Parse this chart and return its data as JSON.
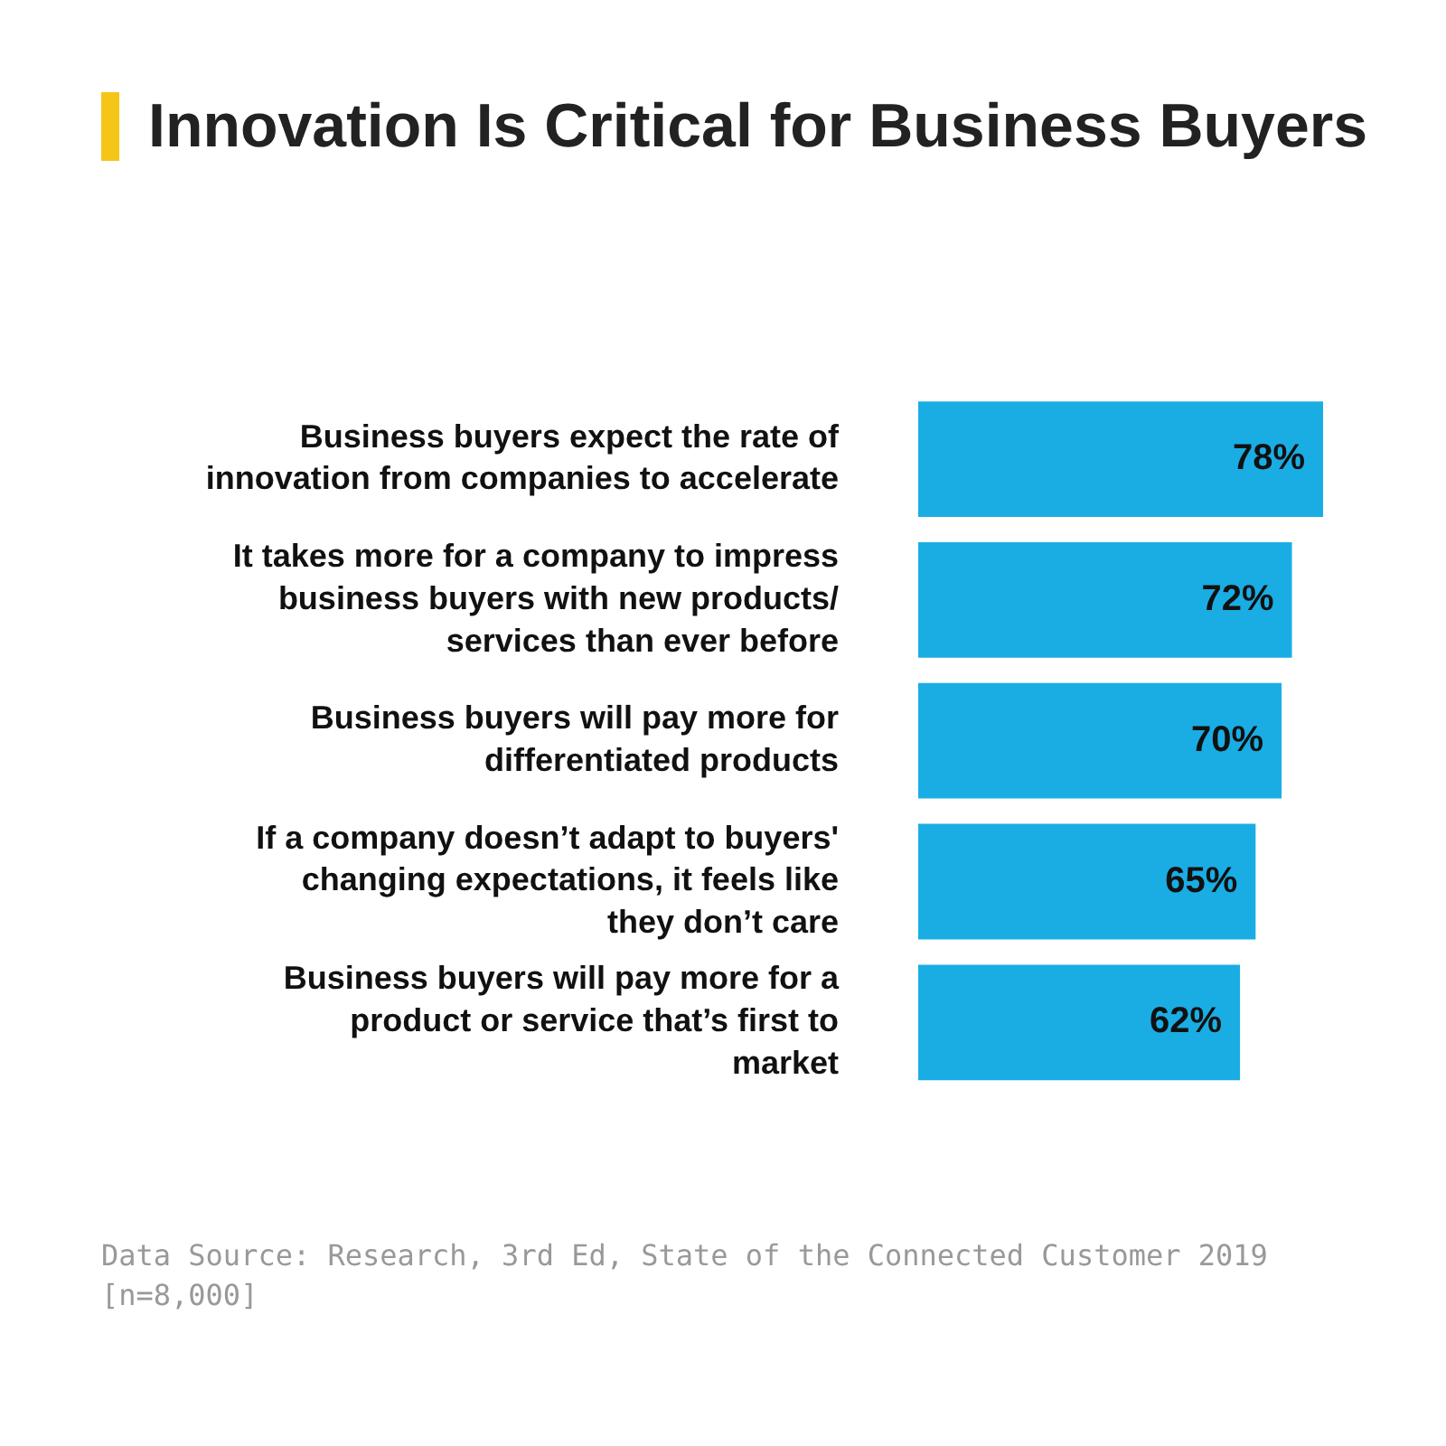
{
  "chart_data": {
    "type": "bar",
    "orientation": "horizontal",
    "title": "Innovation Is Critical for Business Buyers",
    "categories": [
      "Business buyers expect the rate of innovation from companies to accelerate",
      "It takes more for a company to impress business buyers with new products/ services than ever before",
      "Business buyers will pay more for differentiated products",
      "If a company doesn’t adapt to buyers' changing expectations, it feels like they don’t care",
      "Business buyers will pay more for a product or service that’s first to market"
    ],
    "values": [
      78,
      72,
      70,
      65,
      62
    ],
    "value_labels": [
      "78%",
      "72%",
      "70%",
      "65%",
      "62%"
    ],
    "color": "#1aade4",
    "tick_labels": "y",
    "legend": false,
    "annotations": [
      "Data Source: Research, 3rd Ed, State of the Connected Customer 2019 [n=8,000]"
    ]
  }
}
